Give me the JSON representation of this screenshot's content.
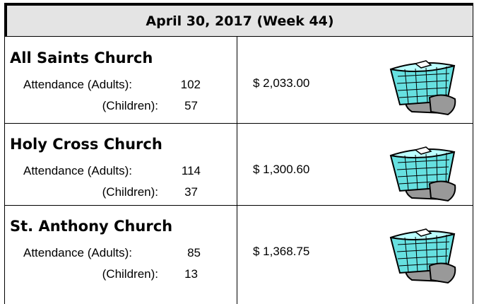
{
  "header": {
    "title": "April 30, 2017 (Week 44)"
  },
  "rows": [
    {
      "name": "All Saints Church",
      "adults_label": "Attendance (Adults):",
      "adults": "102",
      "children_label": "(Children):",
      "children": "57",
      "amount": "$ 2,033.00"
    },
    {
      "name": "Holy Cross Church",
      "adults_label": "Attendance (Adults):",
      "adults": "114",
      "children_label": "(Children):",
      "children": "37",
      "amount": "$ 1,300.60"
    },
    {
      "name": "St. Anthony Church",
      "adults_label": "Attendance (Adults):",
      "adults": "85",
      "children_label": "(Children):",
      "children": "13",
      "amount": "$ 1,368.75"
    }
  ]
}
